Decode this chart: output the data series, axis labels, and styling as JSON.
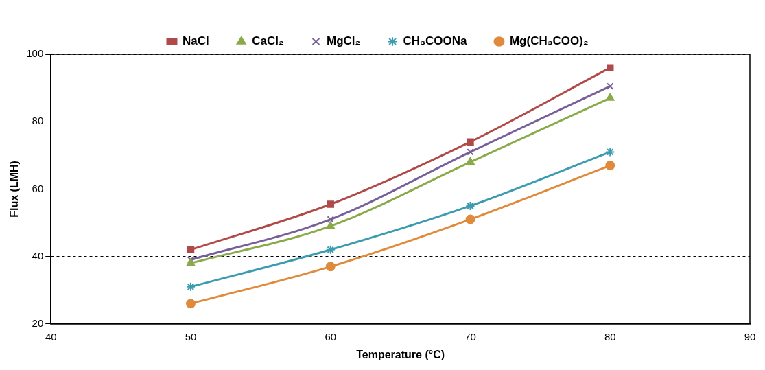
{
  "chart_data": {
    "type": "line",
    "xlabel": "Temperature (°C)",
    "ylabel": "Flux (LMH)",
    "x": [
      50,
      60,
      70,
      80
    ],
    "xlim": [
      40,
      90
    ],
    "xticks": [
      40,
      50,
      60,
      70,
      80,
      90
    ],
    "ylim": [
      20,
      100
    ],
    "yticks": [
      20,
      40,
      60,
      80,
      100
    ],
    "grid": "y",
    "legend": "top",
    "line_style": "solid",
    "series": [
      {
        "name": "NaCl",
        "color": "#b04a48",
        "marker": "square",
        "values": [
          42,
          55.5,
          74,
          96
        ]
      },
      {
        "name": "CaCl₂",
        "color": "#8aaa4a",
        "marker": "triangle",
        "values": [
          38,
          49,
          68,
          87
        ]
      },
      {
        "name": "MgCl₂",
        "color": "#77609a",
        "marker": "cross",
        "values": [
          39,
          51,
          71,
          90.5
        ]
      },
      {
        "name": "CH₃COONa",
        "color": "#3d9bb0",
        "marker": "cross",
        "values": [
          31,
          42,
          55,
          71
        ]
      },
      {
        "name": "Mg(CH₃COO)₂",
        "color": "#e08a3c",
        "marker": "circle",
        "values": [
          26,
          37,
          51,
          67
        ]
      }
    ]
  }
}
